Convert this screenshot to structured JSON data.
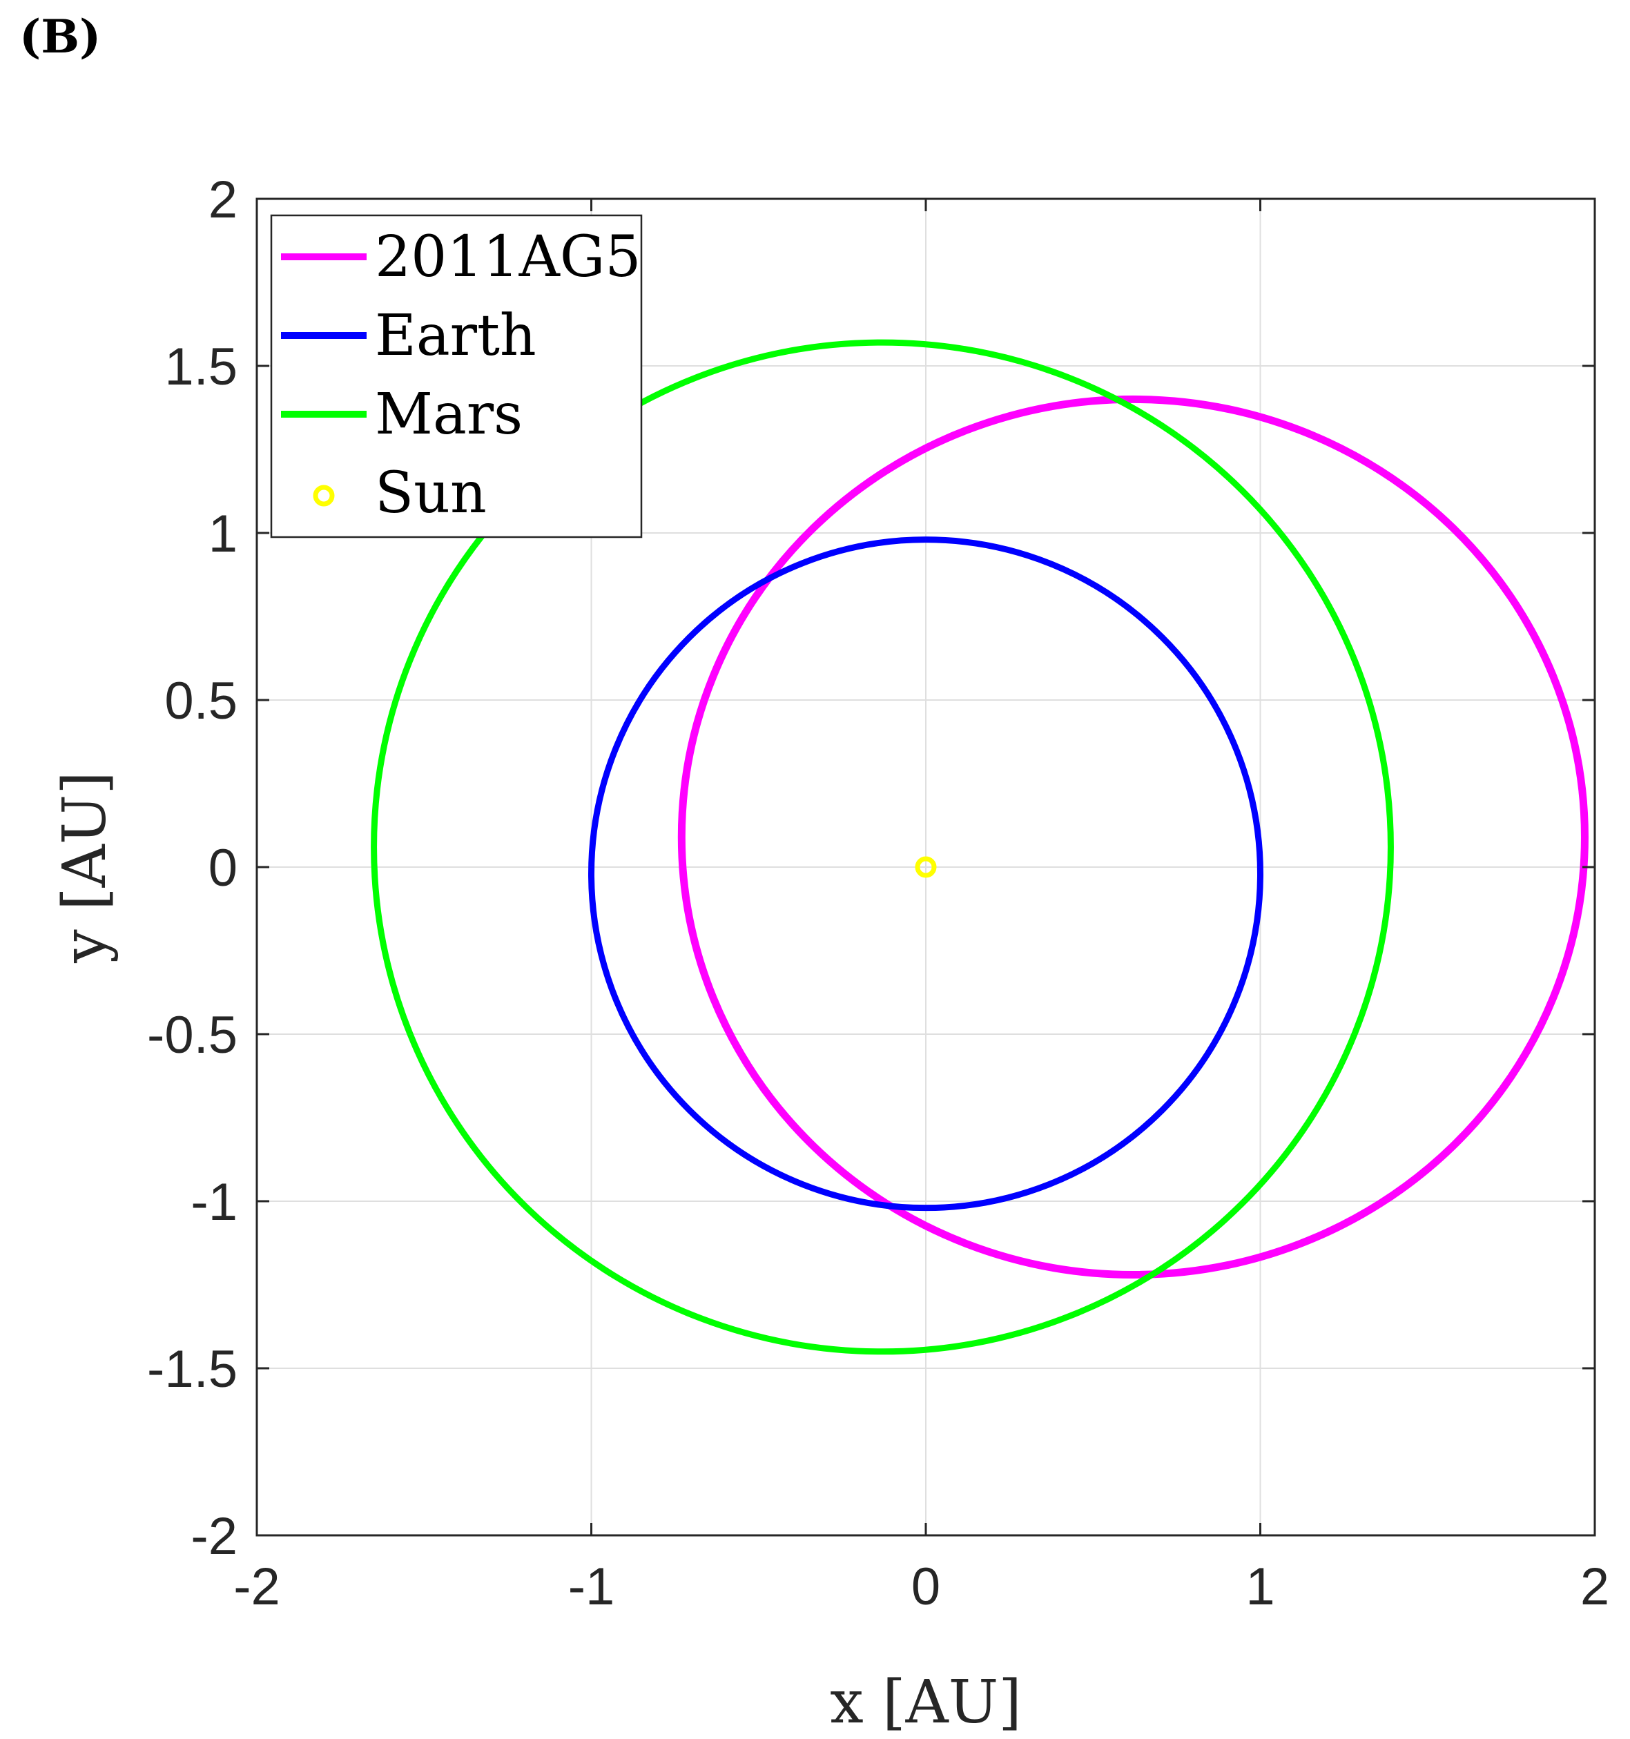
{
  "panel_label": "(B)",
  "chart_data": {
    "type": "line",
    "title": "",
    "xlabel": "x [AU]",
    "ylabel": "y [AU]",
    "xlim": [
      -2,
      2
    ],
    "ylim": [
      -2,
      2
    ],
    "x_ticks": [
      "-2",
      "-1",
      "0",
      "1",
      "2"
    ],
    "y_ticks": [
      "-2",
      "-1.5",
      "-1",
      "-0.5",
      "0",
      "0.5",
      "1",
      "1.5",
      "2"
    ],
    "grid": true,
    "legend_position": "top-left",
    "series": [
      {
        "name": "2011AG5",
        "color": "#ff00ff",
        "shape": "ellipse",
        "center": [
          0.62,
          0.09
        ],
        "radius_x": 1.35,
        "radius_y": 1.31,
        "line_width": 11
      },
      {
        "name": "Earth",
        "color": "#0000ff",
        "shape": "ellipse",
        "center": [
          0.0,
          -0.02
        ],
        "radius_x": 1.0,
        "radius_y": 1.0,
        "line_width": 9
      },
      {
        "name": "Mars",
        "color": "#00ff00",
        "shape": "ellipse",
        "center": [
          -0.13,
          0.06
        ],
        "radius_x": 1.52,
        "radius_y": 1.51,
        "line_width": 9
      }
    ],
    "markers": [
      {
        "name": "Sun",
        "color": "#ffff00",
        "x": 0,
        "y": 0,
        "marker": "o"
      }
    ]
  }
}
